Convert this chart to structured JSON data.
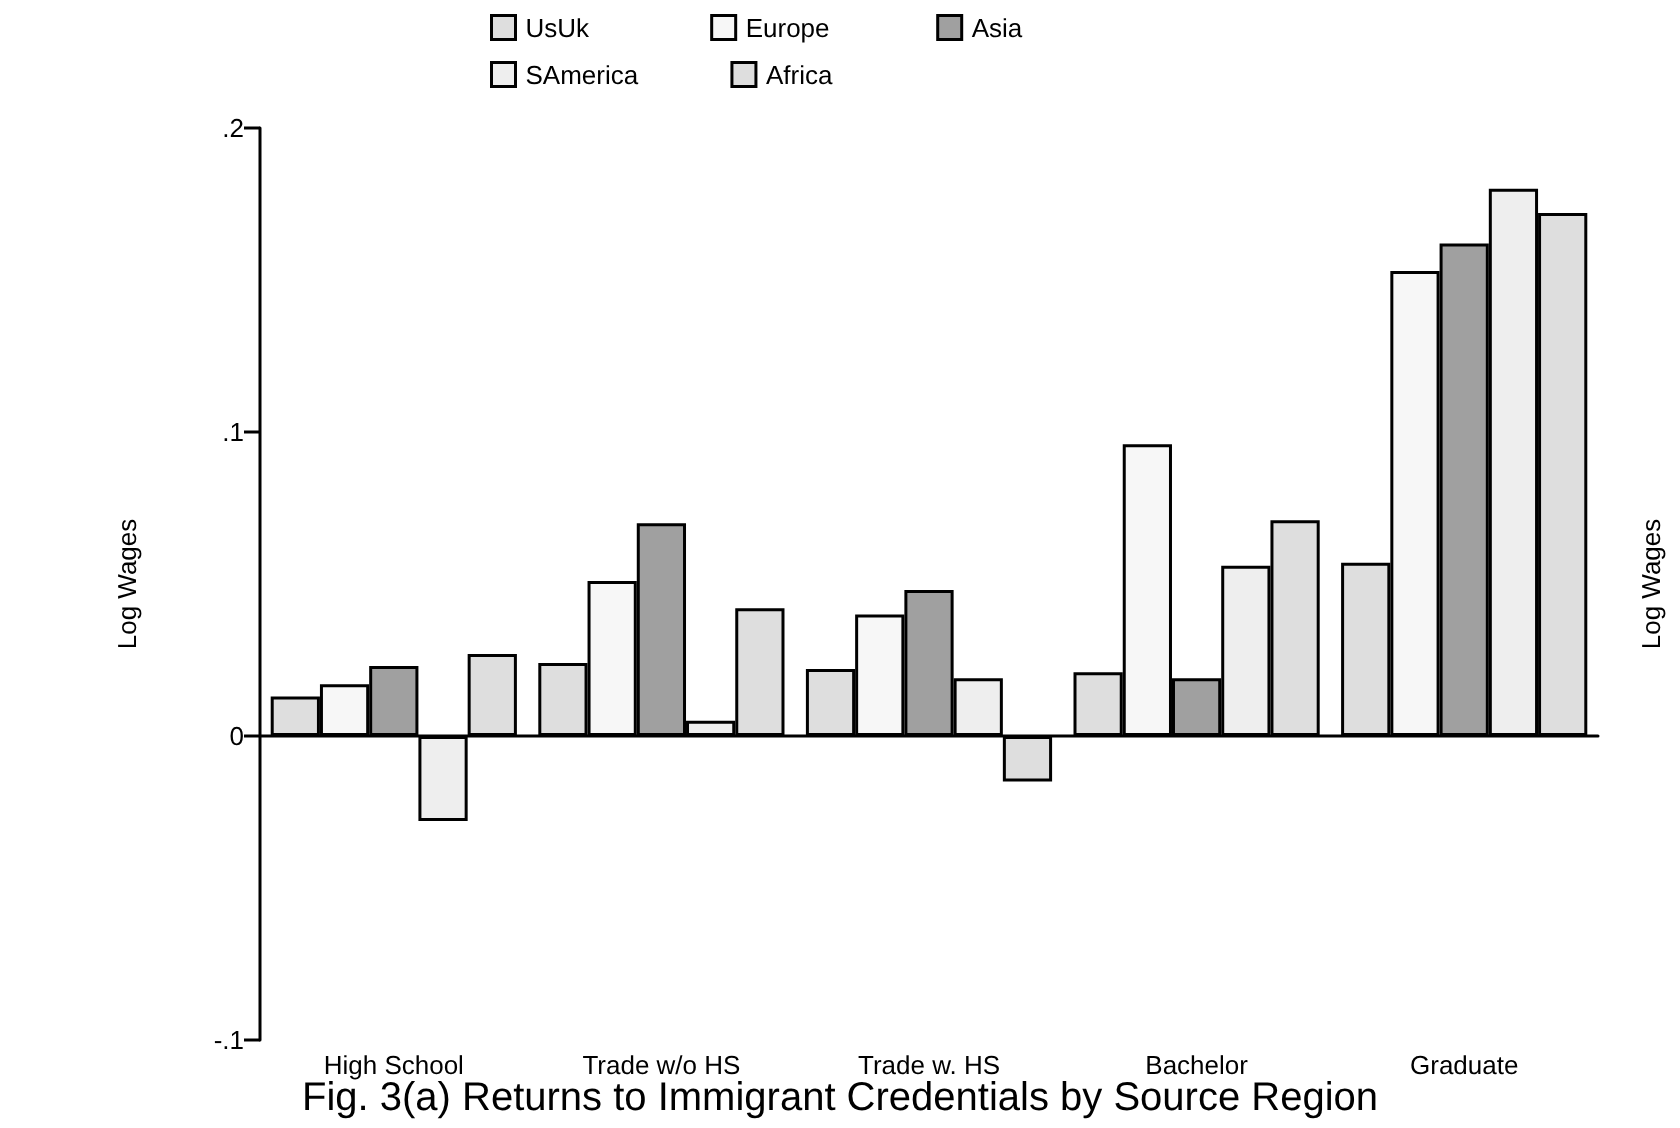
{
  "chart_data": {
    "type": "bar",
    "title": "Fig. 3(a) Returns to Immigrant Credentials by Source Region",
    "ylabel": "Log Wages",
    "y2label": "Log Wages",
    "categories": [
      "High School",
      "Trade w/o HS",
      "Trade w. HS",
      "Bachelor",
      "Graduate"
    ],
    "series": [
      {
        "name": "UsUk",
        "color": "#dedede",
        "values": [
          0.013,
          0.024,
          0.022,
          0.021,
          0.057
        ]
      },
      {
        "name": "Europe",
        "color": "#f7f7f7",
        "values": [
          0.017,
          0.051,
          0.04,
          0.096,
          0.153
        ]
      },
      {
        "name": "Asia",
        "color": "#a0a0a0",
        "values": [
          0.023,
          0.07,
          0.048,
          0.019,
          0.162
        ]
      },
      {
        "name": "SAmerica",
        "color": "#eeeeee",
        "values": [
          -0.028,
          0.005,
          0.019,
          0.056,
          0.18
        ]
      },
      {
        "name": "Africa",
        "color": "#dedede",
        "values": [
          0.027,
          0.042,
          -0.015,
          0.071,
          0.172
        ]
      }
    ],
    "ylim": [
      -0.1,
      0.2
    ],
    "yticks": [
      {
        "value": -0.1,
        "label": "-.1"
      },
      {
        "value": 0,
        "label": "0"
      },
      {
        "value": 0.1,
        "label": ".1"
      },
      {
        "value": 0.2,
        "label": ".2"
      }
    ],
    "legend": "top"
  }
}
